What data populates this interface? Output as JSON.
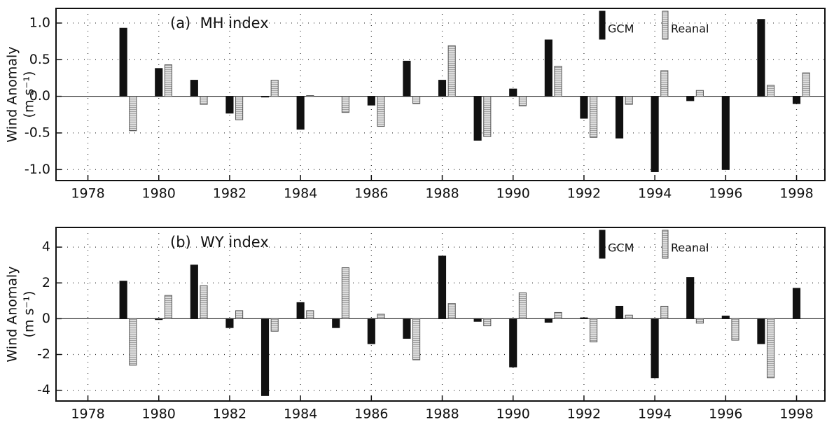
{
  "chart_data": [
    {
      "type": "bar",
      "annotation": "(a)  MH index",
      "ylabel": [
        "Wind Anomaly",
        "(m s⁻¹)"
      ],
      "x": [
        1979,
        1980,
        1981,
        1982,
        1983,
        1984,
        1985,
        1986,
        1987,
        1988,
        1989,
        1990,
        1991,
        1992,
        1993,
        1994,
        1995,
        1996,
        1997,
        1998
      ],
      "series": [
        {
          "name": "GCM",
          "color": "#111111",
          "values": [
            0.93,
            0.38,
            0.22,
            -0.23,
            -0.01,
            -0.45,
            0.0,
            -0.12,
            0.48,
            0.22,
            -0.6,
            0.1,
            0.77,
            -0.3,
            -0.57,
            -1.03,
            -0.06,
            -1.0,
            1.05,
            -0.1
          ]
        },
        {
          "name": "Reanal",
          "color": "#bdbdbd",
          "values": [
            -0.47,
            0.43,
            -0.11,
            -0.32,
            0.22,
            0.01,
            -0.22,
            -0.41,
            -0.1,
            0.69,
            -0.55,
            -0.13,
            0.41,
            -0.56,
            -0.11,
            0.35,
            0.08,
            0.0,
            0.15,
            0.32
          ]
        }
      ],
      "xlim": [
        1977.1,
        1998.8
      ],
      "xticks": [
        1978,
        1980,
        1982,
        1984,
        1986,
        1988,
        1990,
        1992,
        1994,
        1996,
        1998
      ],
      "ylim": [
        -1.15,
        1.2
      ],
      "yticks": [
        {
          "value": -1,
          "label": "-1.0"
        },
        -0.5,
        {
          "value": 0,
          "label": "0.0"
        },
        0.5,
        {
          "value": 1,
          "label": "1.0"
        }
      ],
      "grid": true
    },
    {
      "type": "bar",
      "annotation": "(b)  WY index",
      "ylabel": [
        "Wind Anomaly",
        "(m s⁻¹)"
      ],
      "x": [
        1979,
        1980,
        1981,
        1982,
        1983,
        1984,
        1985,
        1986,
        1987,
        1988,
        1989,
        1990,
        1991,
        1992,
        1993,
        1994,
        1995,
        1996,
        1997,
        1998
      ],
      "series": [
        {
          "name": "GCM",
          "color": "#111111",
          "values": [
            2.1,
            -0.05,
            3.0,
            -0.5,
            -4.3,
            0.9,
            -0.5,
            -1.4,
            -1.1,
            3.5,
            -0.15,
            -2.7,
            -0.2,
            0.05,
            0.7,
            -3.3,
            2.3,
            0.15,
            -1.4,
            1.7
          ]
        },
        {
          "name": "Reanal",
          "color": "#bdbdbd",
          "values": [
            -2.6,
            1.3,
            1.85,
            0.45,
            -0.7,
            0.45,
            2.85,
            0.25,
            -2.3,
            0.85,
            -0.4,
            1.45,
            0.35,
            -1.3,
            0.2,
            0.7,
            -0.25,
            -1.2,
            -3.3,
            null
          ]
        }
      ],
      "xlim": [
        1977.1,
        1998.8
      ],
      "xticks": [
        1978,
        1980,
        1982,
        1984,
        1986,
        1988,
        1990,
        1992,
        1994,
        1996,
        1998
      ],
      "ylim": [
        -4.6,
        5.1
      ],
      "yticks": [
        -4,
        -2,
        0,
        2,
        4
      ],
      "grid": true
    }
  ]
}
